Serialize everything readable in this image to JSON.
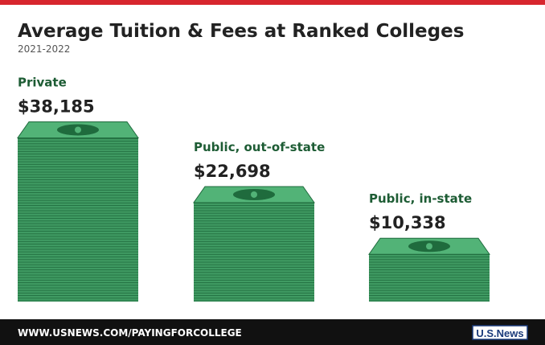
{
  "chart_data": {
    "type": "bar",
    "title": "Average Tuition & Fees at Ranked Colleges",
    "subtitle": "2021-2022",
    "categories": [
      "Private",
      "Public, out-of-state",
      "Public, in-state"
    ],
    "values": [
      38185,
      22698,
      10338
    ],
    "value_labels": [
      "$38,185",
      "$22,698",
      "$10,338"
    ],
    "color": "#3f9a62",
    "footer": "WWW.USNEWS.COM/PAYINGFORCOLLEGE",
    "logo": "U.S.News"
  }
}
